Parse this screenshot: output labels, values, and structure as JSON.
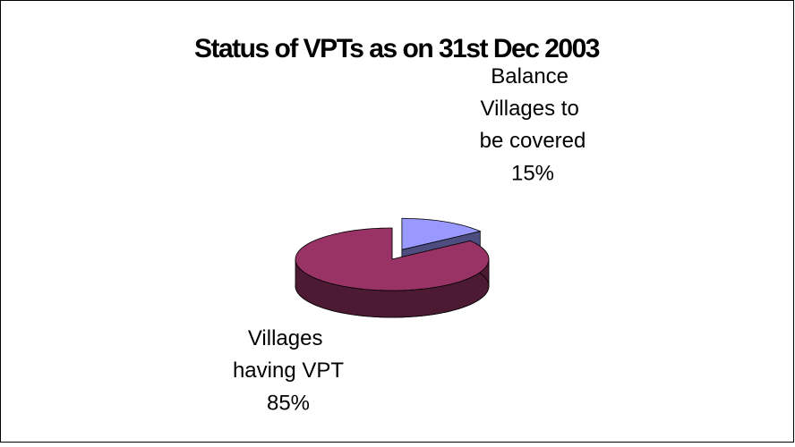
{
  "chart_data": {
    "type": "pie",
    "title": "Status of VPTs as on 31st Dec 2003",
    "categories": [
      "Balance Villages to be covered",
      "Villages having VPT"
    ],
    "values": [
      15,
      85
    ],
    "value_labels": [
      "15%",
      "85%"
    ],
    "colors": [
      "#9999ff",
      "#993366"
    ],
    "explode": [
      true,
      false
    ]
  }
}
